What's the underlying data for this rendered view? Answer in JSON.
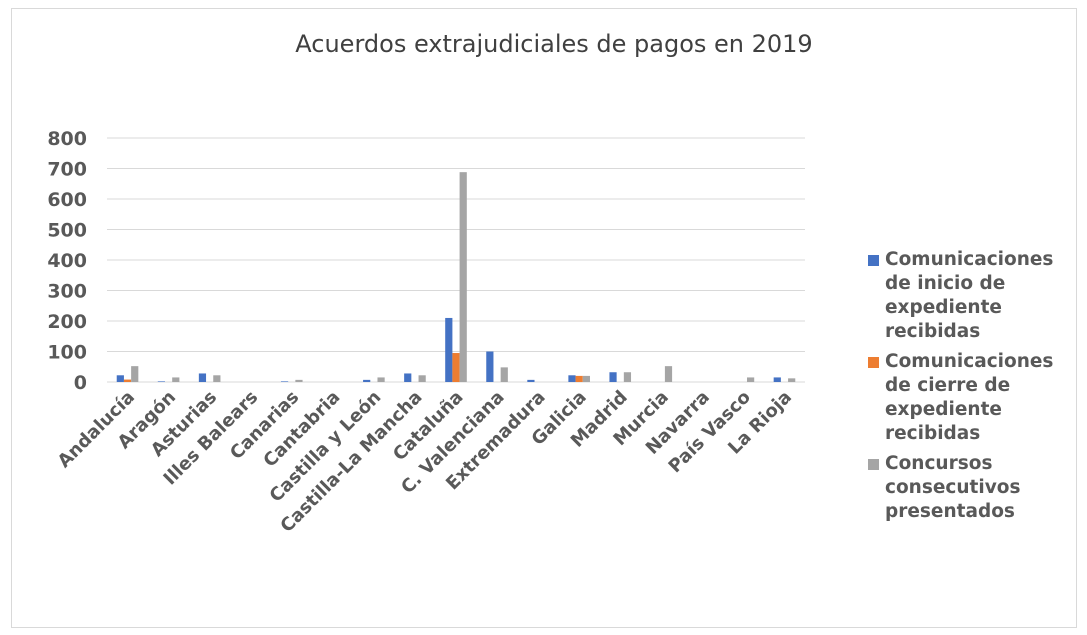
{
  "chart_data": {
    "type": "bar",
    "title": "Acuerdos extrajudiciales de pagos en 2019",
    "xlabel": "",
    "ylabel": "",
    "ylim": [
      0,
      800
    ],
    "yticks": [
      "0",
      "100",
      "200",
      "300",
      "400",
      "500",
      "600",
      "700",
      "800"
    ],
    "grid": true,
    "legend_position": "right",
    "categories": [
      "Andalucía",
      "Aragón",
      "Asturias",
      "Illes Balears",
      "Canarias",
      "Cantabria",
      "Castilla y León",
      "Castilla-La Mancha",
      "Cataluña",
      "C. Valenciana",
      "Extremadura",
      "Galicia",
      "Madrid",
      "Murcia",
      "Navarra",
      "País Vasco",
      "La Rioja"
    ],
    "series": [
      {
        "name": "Comunicaciones de inicio de expediente recibidas",
        "color": "#4472c4",
        "values": [
          22,
          2,
          28,
          0,
          2,
          0,
          7,
          28,
          210,
          100,
          7,
          22,
          32,
          0,
          0,
          0,
          15
        ]
      },
      {
        "name": "Comunicaciones de cierre de expediente recibidas",
        "color": "#ed7d31",
        "values": [
          8,
          0,
          0,
          0,
          0,
          0,
          0,
          0,
          95,
          0,
          0,
          20,
          0,
          0,
          0,
          0,
          0
        ]
      },
      {
        "name": "Concursos consecutivos presentados",
        "color": "#a5a5a5",
        "values": [
          52,
          15,
          22,
          0,
          7,
          0,
          15,
          22,
          688,
          48,
          0,
          20,
          32,
          52,
          0,
          15,
          12
        ]
      }
    ]
  }
}
